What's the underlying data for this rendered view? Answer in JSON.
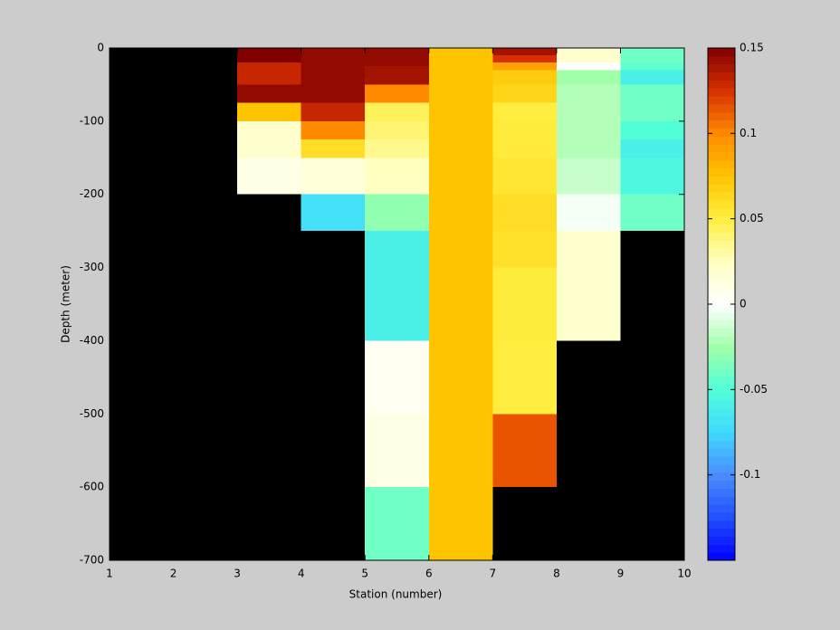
{
  "chart_data": {
    "type": "heatmap",
    "xlabel": "Station (number)",
    "ylabel": "Depth (meter)",
    "xlim": [
      1,
      10
    ],
    "xticks": [
      1,
      2,
      3,
      4,
      5,
      6,
      7,
      8,
      9,
      10
    ],
    "ylim": [
      -700,
      0
    ],
    "yticks": [
      0,
      -100,
      -200,
      -300,
      -400,
      -500,
      -600,
      -700
    ],
    "clim": [
      -0.15,
      0.15
    ],
    "cticks": [
      0.15,
      0.1,
      0.05,
      0,
      -0.05,
      -0.1
    ],
    "nan_color": "#000000",
    "colormap": [
      "#0000ff",
      "#2050ff",
      "#4a8cff",
      "#40d8ff",
      "#50ffd8",
      "#a0ffa8",
      "#ffffff",
      "#ffffc0",
      "#ffee40",
      "#ffc400",
      "#ff8a00",
      "#d83000",
      "#800000"
    ],
    "cells": [
      {
        "x": [
          3,
          4
        ],
        "y": [
          0,
          -20
        ],
        "value": 0.15
      },
      {
        "x": [
          3,
          4
        ],
        "y": [
          -20,
          -50
        ],
        "value": 0.13
      },
      {
        "x": [
          3,
          4
        ],
        "y": [
          -50,
          -75
        ],
        "value": 0.145
      },
      {
        "x": [
          3,
          4
        ],
        "y": [
          -75,
          -100
        ],
        "value": 0.075
      },
      {
        "x": [
          3,
          4
        ],
        "y": [
          -100,
          -125
        ],
        "value": 0.02
      },
      {
        "x": [
          3,
          4
        ],
        "y": [
          -125,
          -150
        ],
        "value": 0.02
      },
      {
        "x": [
          3,
          4
        ],
        "y": [
          -150,
          -200
        ],
        "value": 0.01
      },
      {
        "x": [
          4,
          5
        ],
        "y": [
          0,
          -20
        ],
        "value": 0.145
      },
      {
        "x": [
          4,
          5
        ],
        "y": [
          -20,
          -50
        ],
        "value": 0.145
      },
      {
        "x": [
          4,
          5
        ],
        "y": [
          -50,
          -75
        ],
        "value": 0.145
      },
      {
        "x": [
          4,
          5
        ],
        "y": [
          -75,
          -100
        ],
        "value": 0.13
      },
      {
        "x": [
          4,
          5
        ],
        "y": [
          -100,
          -125
        ],
        "value": 0.1
      },
      {
        "x": [
          4,
          5
        ],
        "y": [
          -125,
          -150
        ],
        "value": 0.06
      },
      {
        "x": [
          4,
          5
        ],
        "y": [
          -150,
          -200
        ],
        "value": 0.015
      },
      {
        "x": [
          4,
          5
        ],
        "y": [
          -200,
          -250
        ],
        "value": -0.07
      },
      {
        "x": [
          5,
          6
        ],
        "y": [
          0,
          -25
        ],
        "value": 0.145
      },
      {
        "x": [
          5,
          6
        ],
        "y": [
          -25,
          -50
        ],
        "value": 0.14
      },
      {
        "x": [
          5,
          6
        ],
        "y": [
          -50,
          -75
        ],
        "value": 0.1
      },
      {
        "x": [
          5,
          6
        ],
        "y": [
          -75,
          -100
        ],
        "value": 0.045
      },
      {
        "x": [
          5,
          6
        ],
        "y": [
          -100,
          -125
        ],
        "value": 0.04
      },
      {
        "x": [
          5,
          6
        ],
        "y": [
          -125,
          -150
        ],
        "value": 0.035
      },
      {
        "x": [
          5,
          6
        ],
        "y": [
          -150,
          -200
        ],
        "value": 0.025
      },
      {
        "x": [
          5,
          6
        ],
        "y": [
          -200,
          -250
        ],
        "value": -0.03
      },
      {
        "x": [
          5,
          6
        ],
        "y": [
          -250,
          -400
        ],
        "value": -0.06
      },
      {
        "x": [
          5,
          6
        ],
        "y": [
          -400,
          -500
        ],
        "value": 0.005
      },
      {
        "x": [
          5,
          6
        ],
        "y": [
          -500,
          -600
        ],
        "value": 0.01
      },
      {
        "x": [
          5,
          6
        ],
        "y": [
          -600,
          -700
        ],
        "value": -0.04
      },
      {
        "x": [
          6,
          7
        ],
        "y": [
          0,
          -700
        ],
        "value": 0.075
      },
      {
        "x": [
          7,
          8
        ],
        "y": [
          0,
          -10
        ],
        "value": 0.14
      },
      {
        "x": [
          7,
          8
        ],
        "y": [
          -10,
          -20
        ],
        "value": 0.125
      },
      {
        "x": [
          7,
          8
        ],
        "y": [
          -20,
          -30
        ],
        "value": 0.09
      },
      {
        "x": [
          7,
          8
        ],
        "y": [
          -30,
          -50
        ],
        "value": 0.07
      },
      {
        "x": [
          7,
          8
        ],
        "y": [
          -50,
          -75
        ],
        "value": 0.065
      },
      {
        "x": [
          7,
          8
        ],
        "y": [
          -75,
          -100
        ],
        "value": 0.05
      },
      {
        "x": [
          7,
          8
        ],
        "y": [
          -100,
          -150
        ],
        "value": 0.052
      },
      {
        "x": [
          7,
          8
        ],
        "y": [
          -150,
          -200
        ],
        "value": 0.055
      },
      {
        "x": [
          7,
          8
        ],
        "y": [
          -200,
          -250
        ],
        "value": 0.06
      },
      {
        "x": [
          7,
          8
        ],
        "y": [
          -250,
          -300
        ],
        "value": 0.058
      },
      {
        "x": [
          7,
          8
        ],
        "y": [
          -300,
          -400
        ],
        "value": 0.052
      },
      {
        "x": [
          7,
          8
        ],
        "y": [
          -400,
          -500
        ],
        "value": 0.05
      },
      {
        "x": [
          7,
          8
        ],
        "y": [
          -500,
          -600
        ],
        "value": 0.115
      },
      {
        "x": [
          8,
          9
        ],
        "y": [
          0,
          -20
        ],
        "value": 0.02
      },
      {
        "x": [
          8,
          9
        ],
        "y": [
          -20,
          -30
        ],
        "value": 0
      },
      {
        "x": [
          8,
          9
        ],
        "y": [
          -30,
          -50
        ],
        "value": -0.025
      },
      {
        "x": [
          8,
          9
        ],
        "y": [
          -50,
          -100
        ],
        "value": -0.02
      },
      {
        "x": [
          8,
          9
        ],
        "y": [
          -100,
          -150
        ],
        "value": -0.02
      },
      {
        "x": [
          8,
          9
        ],
        "y": [
          -150,
          -200
        ],
        "value": -0.015
      },
      {
        "x": [
          8,
          9
        ],
        "y": [
          -200,
          -250
        ],
        "value": -0.003
      },
      {
        "x": [
          8,
          9
        ],
        "y": [
          -250,
          -400
        ],
        "value": 0.02
      },
      {
        "x": [
          9,
          10
        ],
        "y": [
          0,
          -20
        ],
        "value": -0.04
      },
      {
        "x": [
          9,
          10
        ],
        "y": [
          -20,
          -30
        ],
        "value": -0.045
      },
      {
        "x": [
          9,
          10
        ],
        "y": [
          -30,
          -50
        ],
        "value": -0.06
      },
      {
        "x": [
          9,
          10
        ],
        "y": [
          -50,
          -100
        ],
        "value": -0.04
      },
      {
        "x": [
          9,
          10
        ],
        "y": [
          -100,
          -125
        ],
        "value": -0.05
      },
      {
        "x": [
          9,
          10
        ],
        "y": [
          -125,
          -150
        ],
        "value": -0.06
      },
      {
        "x": [
          9,
          10
        ],
        "y": [
          -150,
          -200
        ],
        "value": -0.055
      },
      {
        "x": [
          9,
          10
        ],
        "y": [
          -200,
          -250
        ],
        "value": -0.04
      }
    ]
  }
}
